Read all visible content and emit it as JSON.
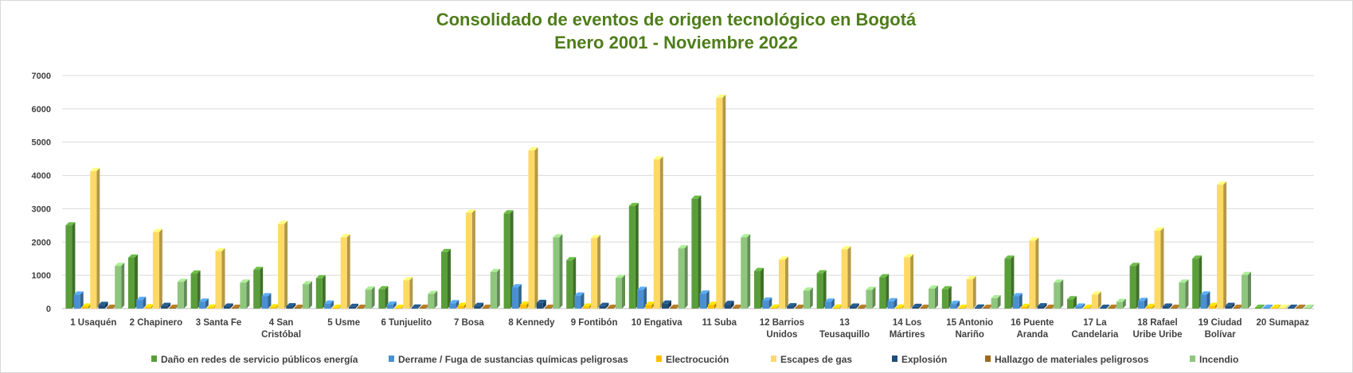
{
  "chart_data": {
    "type": "bar",
    "title": "Consolidado de eventos de origen tecnológico en Bogotá",
    "subtitle": "Enero 2001 - Noviembre 2022",
    "ylim": [
      0,
      7000
    ],
    "yticks": [
      "0",
      "1000",
      "2000",
      "3000",
      "4000",
      "5000",
      "6000",
      "7000"
    ],
    "grid": true,
    "legend_position": "bottom",
    "categories": [
      "1 Usaquén",
      "2 Chapinero",
      "3 Santa Fe",
      "4 San Cristóbal",
      "5 Usme",
      "6 Tunjuelito",
      "7 Bosa",
      "8 Kennedy",
      "9 Fontibón",
      "10 Engativa",
      "11 Suba",
      "12 Barrios Unidos",
      "13 Teusaquillo",
      "14 Los Mártires",
      "15 Antonio Nariño",
      "16 Puente Aranda",
      "17 La Candelaria",
      "18 Rafael Uribe Uribe",
      "19 Ciudad Bolívar",
      "20 Sumapaz"
    ],
    "category_lines": [
      [
        "1 Usaquén"
      ],
      [
        "2 Chapinero"
      ],
      [
        "3 Santa Fe"
      ],
      [
        "4 San",
        "Cristóbal"
      ],
      [
        "5 Usme"
      ],
      [
        "6 Tunjuelito"
      ],
      [
        "7 Bosa"
      ],
      [
        "8 Kennedy"
      ],
      [
        "9 Fontibón"
      ],
      [
        "10 Engativa"
      ],
      [
        "11 Suba"
      ],
      [
        "12 Barrios",
        "Unidos"
      ],
      [
        "13",
        "Teusaquillo"
      ],
      [
        "14 Los",
        "Mártires"
      ],
      [
        "15 Antonio",
        "Nariño"
      ],
      [
        "16 Puente",
        "Aranda"
      ],
      [
        "17 La",
        "Candelaria"
      ],
      [
        "18 Rafael",
        "Uribe Uribe"
      ],
      [
        "19 Ciudad",
        "Bolívar"
      ],
      [
        "20 Sumapaz"
      ]
    ],
    "series": [
      {
        "name": "Daño en redes de servicio públicos energía",
        "color": "#5a9e3a",
        "values": [
          2500,
          1530,
          1050,
          1160,
          910,
          580,
          1700,
          2860,
          1450,
          3080,
          3300,
          1130,
          1060,
          940,
          580,
          1500,
          280,
          1280,
          1500,
          15
        ]
      },
      {
        "name": "Derrame / Fuga de sustancias químicas peligrosas",
        "color": "#4a90d0",
        "values": [
          420,
          260,
          210,
          370,
          150,
          120,
          160,
          640,
          390,
          560,
          450,
          240,
          210,
          220,
          140,
          370,
          60,
          230,
          420,
          8
        ]
      },
      {
        "name": "Electrocución",
        "color": "#ffc000",
        "values": [
          60,
          40,
          30,
          40,
          20,
          15,
          80,
          120,
          60,
          110,
          110,
          30,
          30,
          30,
          15,
          50,
          10,
          50,
          80,
          2
        ]
      },
      {
        "name": "Escapes de gas",
        "color": "#ffd966",
        "values": [
          4130,
          2300,
          1720,
          2540,
          2140,
          850,
          2880,
          4750,
          2120,
          4480,
          6330,
          1470,
          1780,
          1540,
          880,
          2040,
          420,
          2340,
          3720,
          5
        ]
      },
      {
        "name": "Explosión",
        "color": "#1f4e79",
        "values": [
          110,
          80,
          60,
          70,
          50,
          30,
          80,
          170,
          80,
          150,
          140,
          70,
          60,
          50,
          30,
          70,
          15,
          60,
          80,
          2
        ]
      },
      {
        "name": "Hallazgo de materiales peligrosos",
        "color": "#9c6b1f",
        "values": [
          20,
          15,
          10,
          12,
          8,
          6,
          15,
          25,
          15,
          25,
          25,
          10,
          10,
          10,
          6,
          12,
          4,
          12,
          15,
          1
        ]
      },
      {
        "name": "Incendio",
        "color": "#8fc67e",
        "values": [
          1280,
          800,
          780,
          730,
          570,
          440,
          1100,
          2140,
          920,
          1810,
          2140,
          540,
          560,
          600,
          310,
          780,
          200,
          780,
          1010,
          8
        ]
      }
    ]
  }
}
